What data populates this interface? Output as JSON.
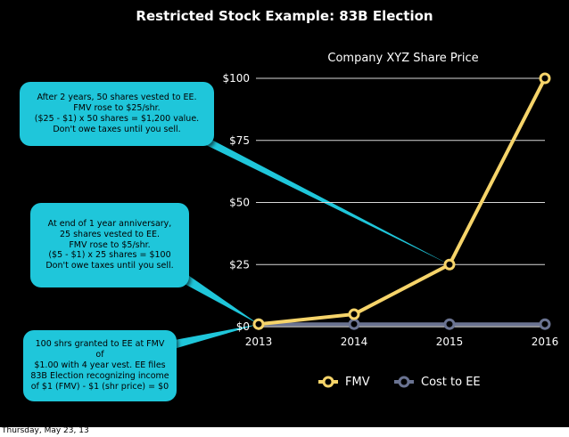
{
  "slide": {
    "title": "Restricted Stock Example: 83B Election",
    "footer_date": "Thursday, May 23, 13"
  },
  "callouts": [
    {
      "text": "After 2 years, 50 shares vested to EE.\nFMV rose to $25/shr.\n($25 - $1) x 50 shares = $1,200 value.\nDon't owe taxes until you sell."
    },
    {
      "text": "At end of 1 year anniversary,\n25 shares vested to EE.\nFMV rose to $5/shr.\n($5 - $1) x 25 shares = $100\nDon't owe taxes until you sell."
    },
    {
      "text": "100 shrs granted to EE at FMV of\n$1.00 with 4 year vest. EE files\n83B Election recognizing income\nof $1 (FMV) - $1 (shr price) = $0"
    }
  ],
  "chart_data": {
    "type": "line",
    "title": "Company XYZ Share Price",
    "categories": [
      "2013",
      "2014",
      "2015",
      "2016"
    ],
    "y_ticks": [
      "$0",
      "$25",
      "$50",
      "$75",
      "$100"
    ],
    "ylim": [
      0,
      100
    ],
    "grid": true,
    "legend_position": "bottom",
    "series": [
      {
        "name": "FMV",
        "values": [
          1,
          5,
          25,
          100
        ],
        "color": "#f6d46a"
      },
      {
        "name": "Cost to EE",
        "values": [
          1,
          1,
          1,
          1
        ],
        "color": "#6a7391"
      }
    ]
  }
}
